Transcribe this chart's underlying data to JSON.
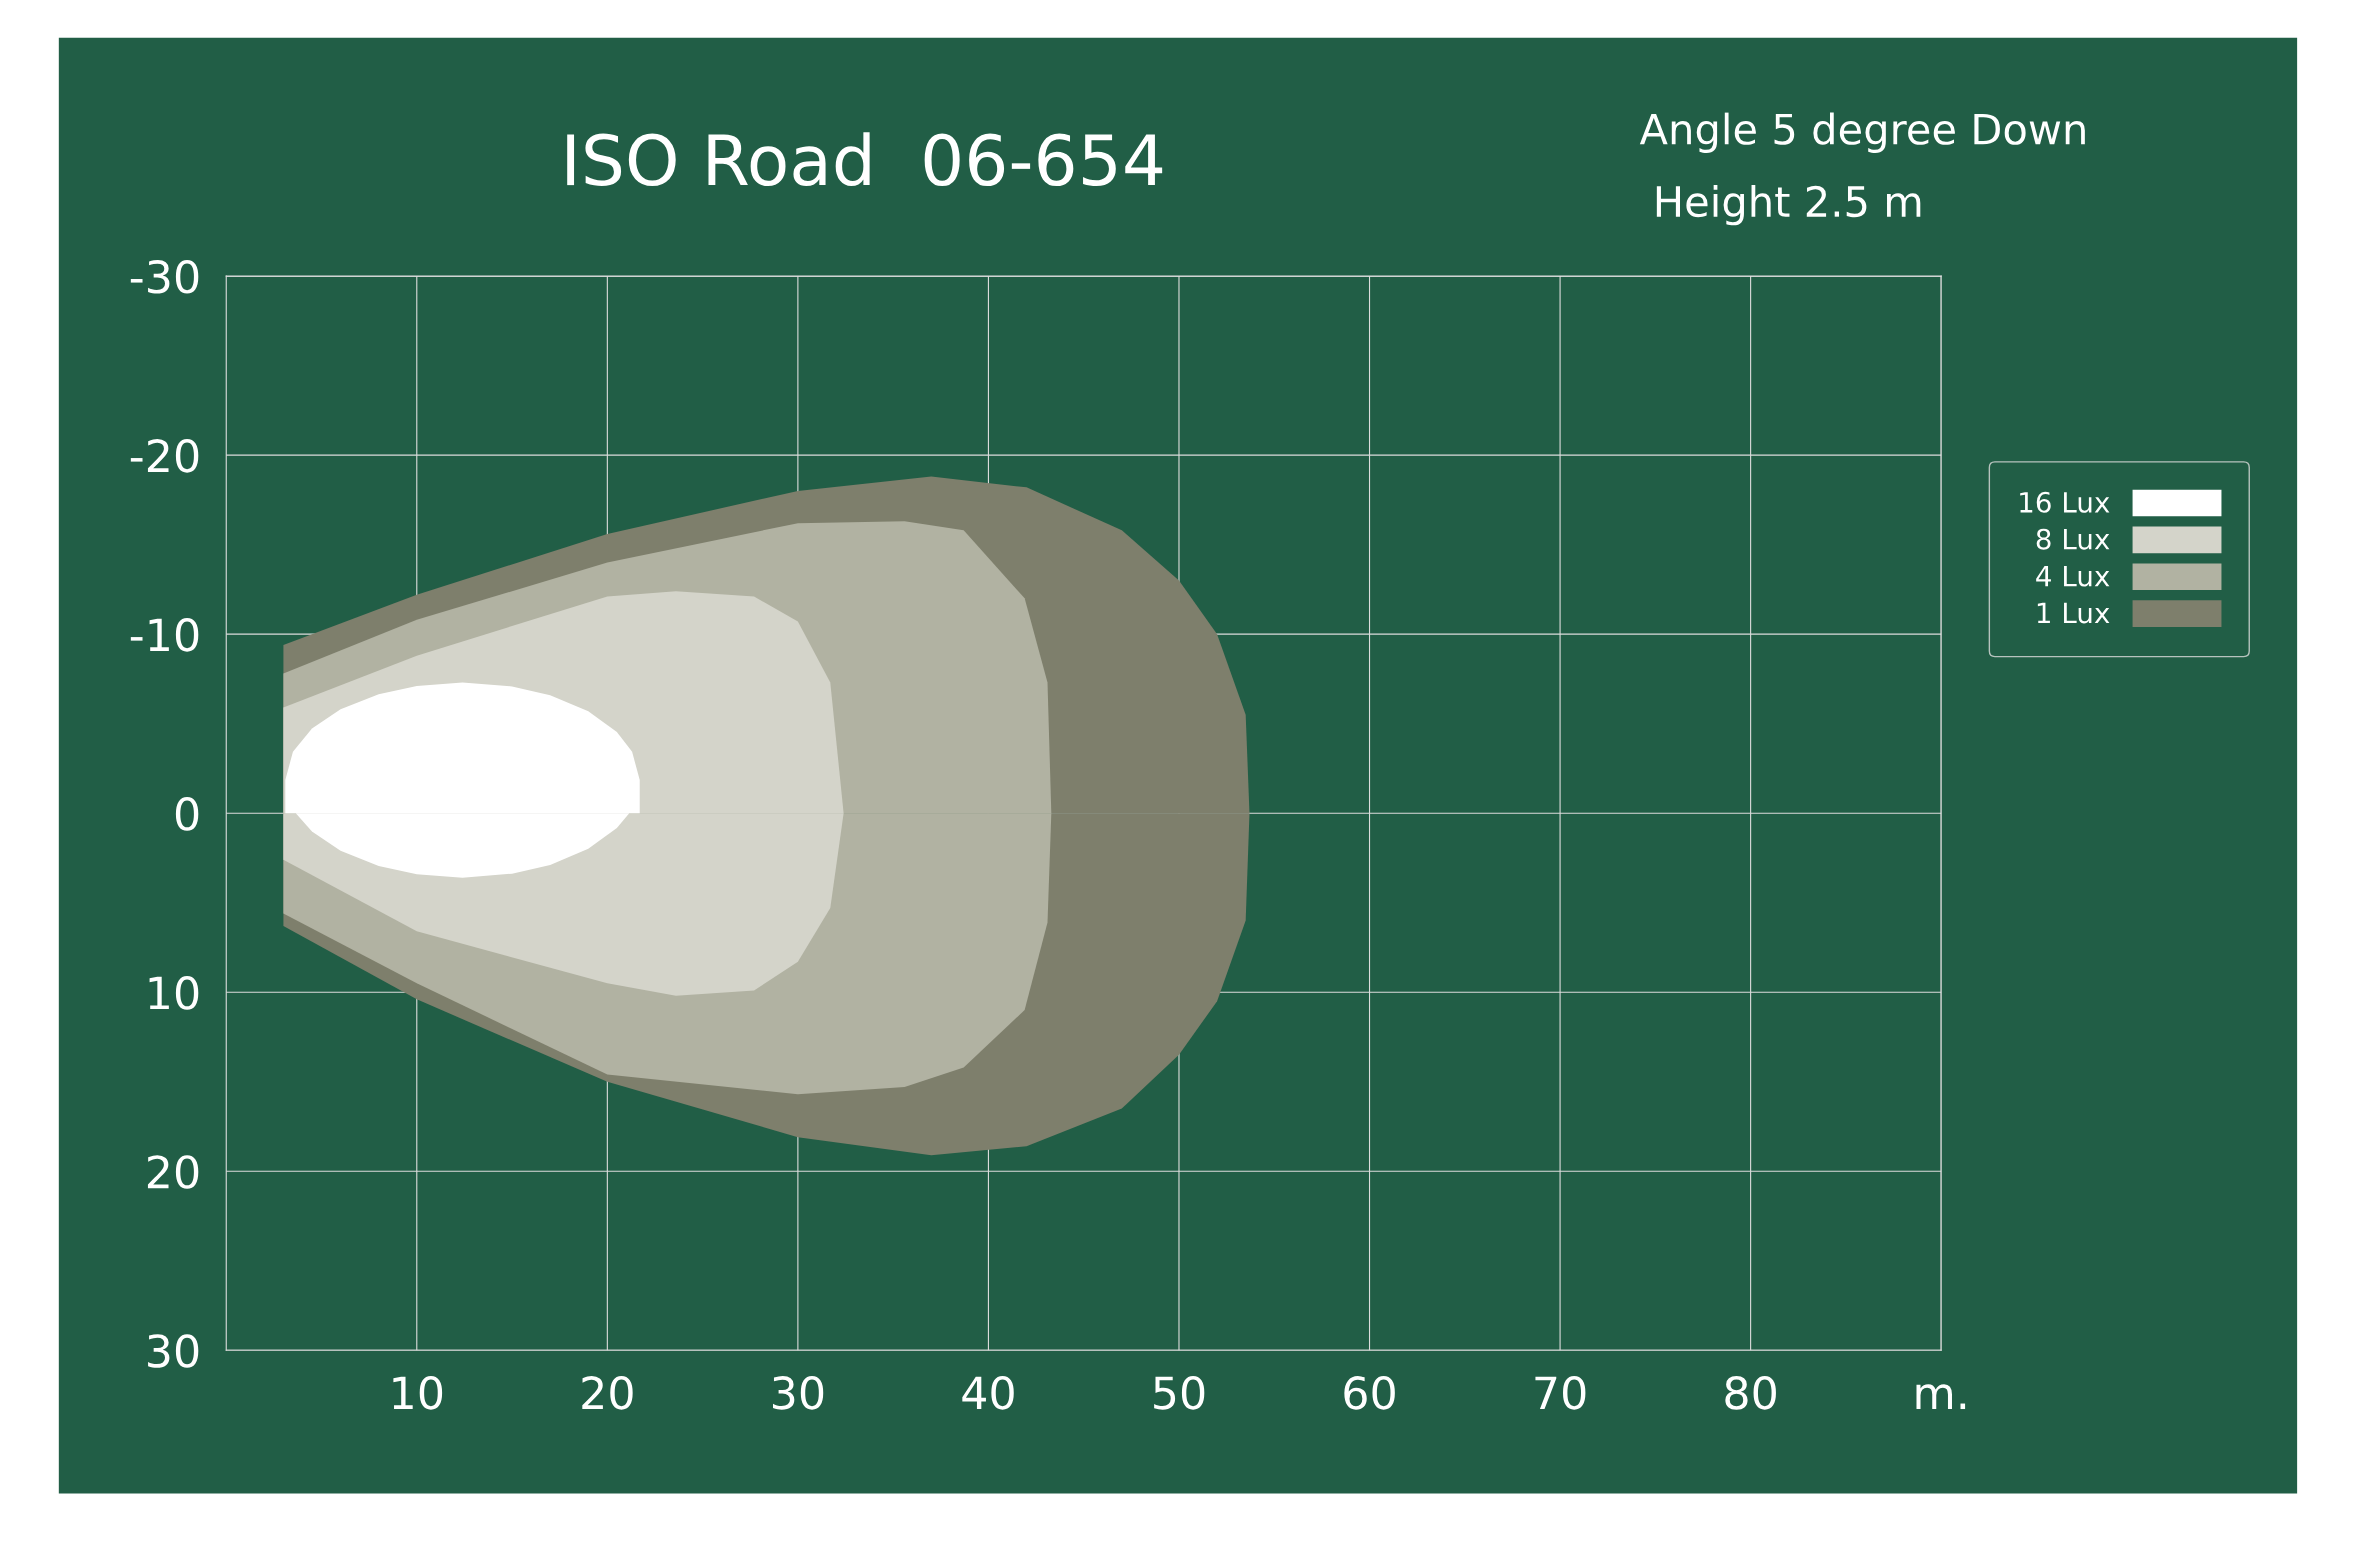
{
  "chart_data": {
    "type": "area",
    "title": "ISO Road  06-654",
    "annotations": [
      "Angle 5 degree Down",
      " Height 2.5 m"
    ],
    "xlim": [
      0,
      90
    ],
    "xticks": [
      10,
      20,
      30,
      40,
      50,
      60,
      70,
      80,
      {
        "value": 90,
        "label": "m."
      }
    ],
    "ylim": [
      30,
      -30
    ],
    "yticks": [
      -30,
      -20,
      -10,
      0,
      10,
      20,
      30
    ],
    "grid": true,
    "legend": "right",
    "series": [
      {
        "name": "16 Lux",
        "color": "#ffffff",
        "x": [
          3.1,
          3.5,
          4.5,
          6,
          8,
          10,
          12.4,
          15,
          17,
          19,
          20.5,
          21.3,
          21.7
        ],
        "values": [
          -1.85,
          -3.43,
          -4.73,
          -5.8,
          -6.65,
          -7.11,
          -7.3,
          -7.08,
          -6.59,
          -5.69,
          -4.53,
          -3.43,
          -1.85
        ]
      },
      {
        "color": "#ffffff",
        "x": [
          3.65,
          4.5,
          6,
          8,
          10,
          12.4,
          15,
          17,
          19,
          20.5,
          21.15
        ],
        "values": [
          0,
          1.03,
          2.1,
          2.95,
          3.41,
          3.6,
          3.38,
          2.89,
          1.99,
          0.83,
          0
        ]
      },
      {
        "name": "8 Lux",
        "color": "#d4d4ca",
        "x": [
          3,
          10,
          20,
          23.6,
          27.7,
          30,
          31.7,
          32.4
        ],
        "values": [
          -5.9,
          -8.8,
          -12.1,
          -12.4,
          -12.1,
          -10.7,
          -7.3,
          0
        ]
      },
      {
        "color": "#d4d4ca",
        "x": [
          3,
          10,
          20,
          23.6,
          27.7,
          30,
          31.7,
          32.4
        ],
        "values": [
          2.6,
          6.6,
          9.5,
          10.2,
          9.9,
          8.3,
          5.3,
          0
        ]
      },
      {
        "name": "4 Lux",
        "color": "#b1b2a2",
        "x": [
          3,
          10,
          20,
          30,
          35.6,
          38.7,
          41.9,
          43.1,
          43.3
        ],
        "values": [
          -7.8,
          -10.8,
          -14,
          -16.2,
          -16.3,
          -15.8,
          -12,
          -7.3,
          0
        ]
      },
      {
        "color": "#b1b2a2",
        "x": [
          3,
          10,
          20,
          30,
          35.6,
          38.7,
          41.9,
          43.1,
          43.3
        ],
        "values": [
          5.6,
          9.5,
          14.6,
          15.7,
          15.3,
          14.2,
          11,
          6.1,
          0
        ]
      },
      {
        "name": "1 Lux",
        "color": "#7e7f6c",
        "x": [
          3,
          10,
          20,
          30,
          37,
          42,
          47,
          50,
          52,
          53.5,
          53.7
        ],
        "values": [
          -9.4,
          -12.2,
          -15.6,
          -18,
          -18.8,
          -18.2,
          -15.8,
          -13,
          -10,
          -5.5,
          0
        ]
      },
      {
        "color": "#7e7f6c",
        "x": [
          3,
          10,
          20,
          30,
          37,
          42,
          47,
          50,
          52,
          53.5,
          53.7
        ],
        "values": [
          6.3,
          10.4,
          15,
          18.1,
          19.1,
          18.6,
          16.5,
          13.5,
          10.5,
          6,
          0
        ]
      }
    ]
  }
}
